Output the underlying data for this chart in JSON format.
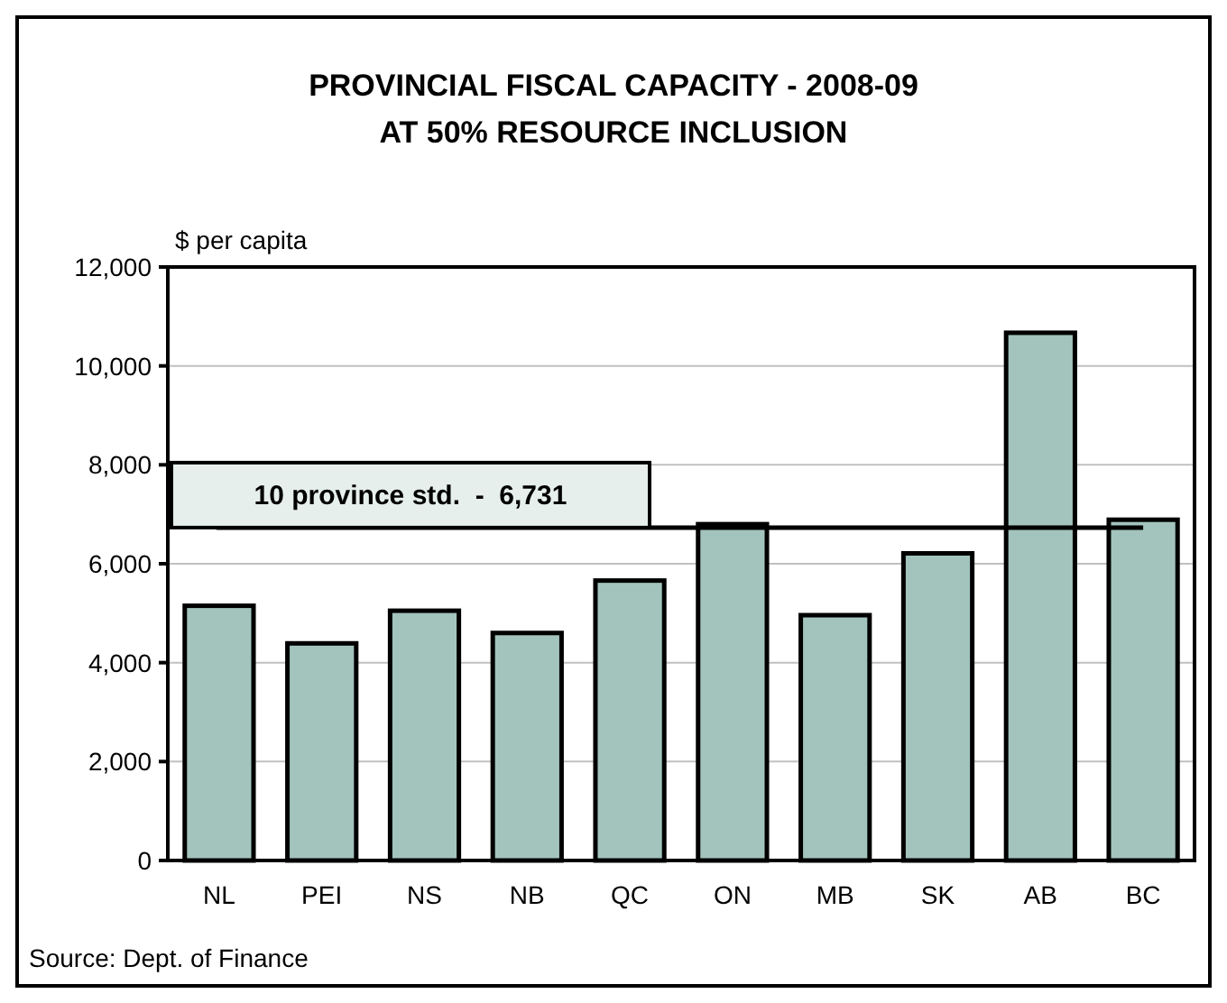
{
  "chart_data": {
    "type": "bar",
    "title": "PROVINCIAL FISCAL CAPACITY - 2008-09\nAT 50% RESOURCE INCLUSION",
    "ylabel": "$ per capita",
    "categories": [
      "NL",
      "PEI",
      "NS",
      "NB",
      "QC",
      "ON",
      "MB",
      "SK",
      "AB",
      "BC"
    ],
    "values": [
      5150,
      4390,
      5050,
      4600,
      5660,
      6800,
      4960,
      6210,
      10670,
      6890
    ],
    "color": "#a3c4bd",
    "ylim": [
      0,
      12000
    ],
    "yticks": [
      {
        "value": 0,
        "label": "0"
      },
      {
        "value": 2000,
        "label": "2,000"
      },
      {
        "value": 4000,
        "label": "4,000"
      },
      {
        "value": 6000,
        "label": "6,000"
      },
      {
        "value": 8000,
        "label": "8,000"
      },
      {
        "value": 10000,
        "label": "10,000"
      },
      {
        "value": 12000,
        "label": "12,000"
      }
    ],
    "grid": "y",
    "ref_lines": [
      {
        "axis": "y",
        "value": 6731,
        "label": "10 province std.  -  6,731",
        "color": "#000000"
      }
    ],
    "annotations": [
      "Source: Dept. of Finance"
    ]
  }
}
